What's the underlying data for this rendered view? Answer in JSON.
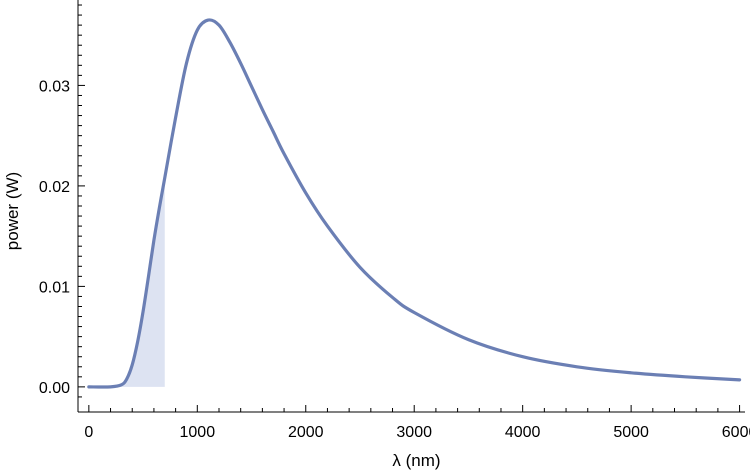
{
  "chart_data": {
    "type": "line",
    "xlabel": "λ (nm)",
    "ylabel": "power (W)",
    "xlim": [
      -100,
      6050
    ],
    "ylim": [
      -0.0025,
      0.0385
    ],
    "x_ticks": [
      0,
      1000,
      2000,
      3000,
      4000,
      5000,
      6000
    ],
    "x_tick_labels": [
      "0",
      "1000",
      "2000",
      "3000",
      "4000",
      "5000",
      "6000"
    ],
    "y_ticks": [
      0.0,
      0.01,
      0.02,
      0.03
    ],
    "y_tick_labels": [
      "0.00",
      "0.01",
      "0.02",
      "0.03"
    ],
    "grid": false,
    "series": [
      {
        "color": "#6b7fb4",
        "x": [
          0,
          200,
          300,
          350,
          400,
          450,
          500,
          550,
          600,
          650,
          700,
          800,
          900,
          1000,
          1100,
          1200,
          1300,
          1400,
          1500,
          1600,
          1700,
          1800,
          2000,
          2200,
          2500,
          2800,
          3000,
          3500,
          4000,
          4500,
          5000,
          5500,
          6000
        ],
        "y": [
          0.0,
          0.0,
          0.0002,
          0.0008,
          0.0022,
          0.0045,
          0.0075,
          0.011,
          0.0146,
          0.0178,
          0.0208,
          0.0268,
          0.0322,
          0.0355,
          0.0365,
          0.036,
          0.0343,
          0.0322,
          0.0299,
          0.0276,
          0.0254,
          0.0232,
          0.0193,
          0.016,
          0.0119,
          0.0089,
          0.0074,
          0.0047,
          0.003,
          0.002,
          0.0014,
          0.001,
          0.0007
        ]
      }
    ],
    "shaded_region": {
      "x_range": [
        0,
        700
      ],
      "color": "#dde3f2"
    }
  }
}
